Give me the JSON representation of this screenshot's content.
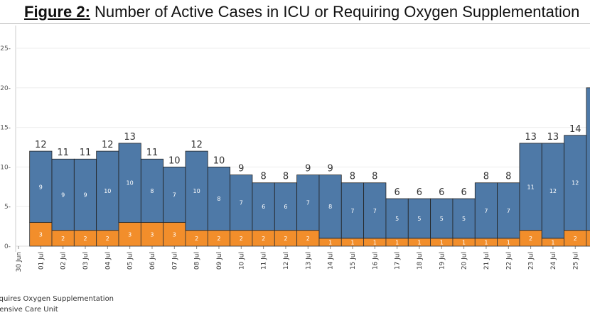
{
  "title": {
    "prefix": "Figure 2:",
    "text": " Number of Active Cases in ICU or Requiring Oxygen Supplementation"
  },
  "chart_data": {
    "type": "bar",
    "stacked": true,
    "categories": [
      "30 Jun",
      "01 Jul",
      "02 Jul",
      "03 Jul",
      "04 Jul",
      "05 Jul",
      "06 Jul",
      "07 Jul",
      "08 Jul",
      "09 Jul",
      "10 Jul",
      "11 Jul",
      "12 Jul",
      "13 Jul",
      "14 Jul",
      "15 Jul",
      "16 Jul",
      "17 Jul",
      "18 Jul",
      "19 Jul",
      "20 Jul",
      "21 Jul",
      "22 Jul",
      "23 Jul",
      "24 Jul",
      "25 Jul"
    ],
    "series": [
      {
        "name": "Intensive Care Unit",
        "color": "#f28e2b",
        "values": [
          null,
          3,
          2,
          2,
          2,
          3,
          3,
          3,
          2,
          2,
          2,
          2,
          2,
          2,
          1,
          1,
          1,
          1,
          1,
          1,
          1,
          1,
          1,
          2,
          1,
          2
        ]
      },
      {
        "name": "Requires Oxygen Supplementation",
        "color": "#4e79a7",
        "values": [
          null,
          9,
          9,
          9,
          10,
          10,
          8,
          7,
          10,
          8,
          7,
          6,
          6,
          7,
          8,
          7,
          7,
          5,
          5,
          5,
          5,
          7,
          7,
          11,
          12,
          12
        ]
      }
    ],
    "totals": [
      null,
      12,
      11,
      11,
      12,
      13,
      11,
      10,
      12,
      10,
      9,
      8,
      8,
      9,
      9,
      8,
      8,
      6,
      6,
      6,
      6,
      8,
      8,
      13,
      13,
      14
    ],
    "partial_next_bar_total": 20,
    "yticks": [
      0,
      5,
      10,
      15,
      20,
      25
    ],
    "ylim": [
      0,
      27
    ],
    "grid": true,
    "legend": "bottom-left"
  }
}
